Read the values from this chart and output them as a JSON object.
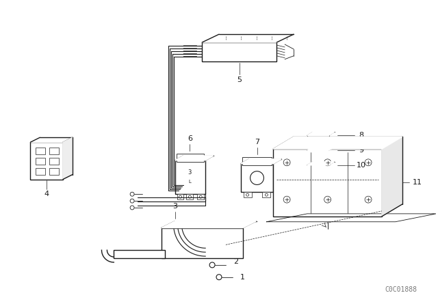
{
  "background_color": "#ffffff",
  "watermark": "C0C01888",
  "fig_width": 6.4,
  "fig_height": 4.48,
  "dpi": 100,
  "line_color": "#1a1a1a",
  "lw_main": 1.0,
  "lw_thin": 0.6,
  "lw_wire": 0.8,
  "label_fontsize": 8,
  "watermark_fontsize": 7,
  "watermark_color": "#777777"
}
